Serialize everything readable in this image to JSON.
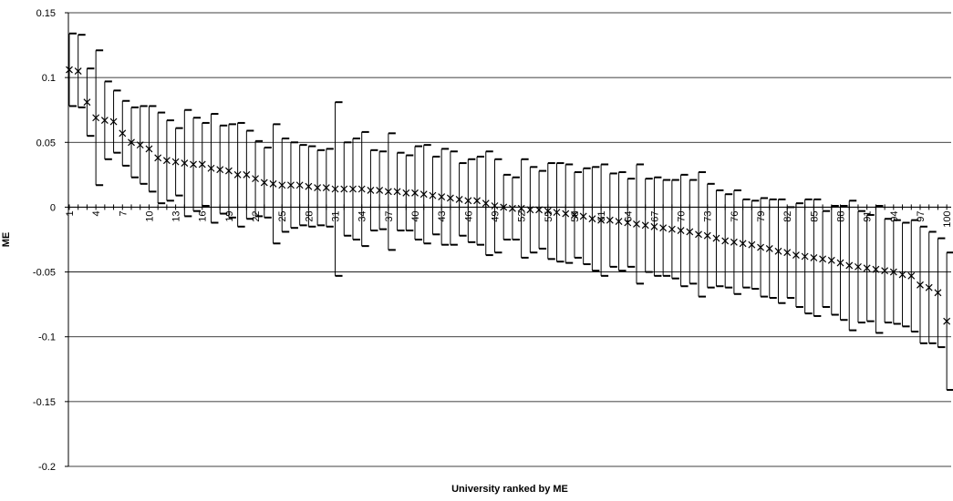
{
  "chart_data": {
    "type": "errorbar",
    "x_label": "University ranked by ME",
    "y_label": "ME",
    "x": [
      1,
      2,
      3,
      4,
      5,
      6,
      7,
      8,
      9,
      10,
      11,
      12,
      13,
      14,
      15,
      16,
      17,
      18,
      19,
      20,
      21,
      22,
      23,
      24,
      25,
      26,
      27,
      28,
      29,
      30,
      31,
      32,
      33,
      34,
      35,
      36,
      37,
      38,
      39,
      40,
      41,
      42,
      43,
      44,
      45,
      46,
      47,
      48,
      49,
      50,
      51,
      52,
      53,
      54,
      55,
      56,
      57,
      58,
      59,
      60,
      61,
      62,
      63,
      64,
      65,
      66,
      67,
      68,
      69,
      70,
      71,
      72,
      73,
      74,
      75,
      76,
      77,
      78,
      79,
      80,
      81,
      82,
      83,
      84,
      85,
      86,
      87,
      88,
      89,
      90,
      91,
      92,
      93,
      94,
      95,
      96,
      97,
      98,
      99,
      100
    ],
    "values": [
      0.106,
      0.105,
      0.081,
      0.069,
      0.067,
      0.066,
      0.057,
      0.05,
      0.048,
      0.045,
      0.038,
      0.036,
      0.035,
      0.034,
      0.033,
      0.033,
      0.03,
      0.029,
      0.028,
      0.025,
      0.025,
      0.022,
      0.019,
      0.018,
      0.017,
      0.017,
      0.017,
      0.016,
      0.015,
      0.015,
      0.014,
      0.014,
      0.014,
      0.014,
      0.013,
      0.013,
      0.012,
      0.012,
      0.011,
      0.011,
      0.01,
      0.009,
      0.008,
      0.007,
      0.006,
      0.005,
      0.005,
      0.003,
      0.001,
      0.0,
      -0.001,
      -0.001,
      -0.002,
      -0.002,
      -0.003,
      -0.004,
      -0.005,
      -0.006,
      -0.007,
      -0.009,
      -0.01,
      -0.01,
      -0.011,
      -0.012,
      -0.013,
      -0.014,
      -0.015,
      -0.016,
      -0.017,
      -0.018,
      -0.019,
      -0.021,
      -0.022,
      -0.024,
      -0.026,
      -0.027,
      -0.028,
      -0.029,
      -0.031,
      -0.032,
      -0.034,
      -0.035,
      -0.037,
      -0.038,
      -0.039,
      -0.04,
      -0.041,
      -0.043,
      -0.045,
      -0.046,
      -0.047,
      -0.048,
      -0.049,
      -0.05,
      -0.052,
      -0.053,
      -0.06,
      -0.062,
      -0.066,
      -0.088
    ],
    "errors": [
      0.028,
      0.028,
      0.026,
      0.052,
      0.03,
      0.024,
      0.025,
      0.027,
      0.03,
      0.033,
      0.035,
      0.031,
      0.026,
      0.041,
      0.036,
      0.032,
      0.042,
      0.034,
      0.036,
      0.04,
      0.034,
      0.029,
      0.027,
      0.046,
      0.036,
      0.033,
      0.031,
      0.031,
      0.029,
      0.03,
      0.067,
      0.036,
      0.039,
      0.044,
      0.031,
      0.03,
      0.045,
      0.03,
      0.029,
      0.036,
      0.038,
      0.03,
      0.037,
      0.036,
      0.028,
      0.032,
      0.034,
      0.04,
      0.036,
      0.025,
      0.024,
      0.038,
      0.033,
      0.03,
      0.037,
      0.038,
      0.038,
      0.033,
      0.037,
      0.04,
      0.043,
      0.036,
      0.038,
      0.034,
      0.046,
      0.036,
      0.038,
      0.037,
      0.038,
      0.043,
      0.04,
      0.048,
      0.04,
      0.037,
      0.036,
      0.04,
      0.034,
      0.034,
      0.038,
      0.038,
      0.04,
      0.035,
      0.04,
      0.044,
      0.045,
      0.037,
      0.042,
      0.044,
      0.05,
      0.043,
      0.041,
      0.049,
      0.04,
      0.04,
      0.04,
      0.043,
      0.045,
      0.043,
      0.042,
      0.053
    ],
    "color": "#000000",
    "xlim": [
      0.9,
      100.5
    ],
    "xticks": [
      1,
      4,
      7,
      10,
      13,
      16,
      19,
      22,
      25,
      28,
      31,
      34,
      37,
      40,
      43,
      46,
      49,
      52,
      55,
      58,
      61,
      64,
      67,
      70,
      73,
      76,
      79,
      82,
      85,
      88,
      91,
      94,
      97,
      100
    ],
    "ylim": [
      -0.2,
      0.15
    ],
    "yticks": [
      0.15,
      0.1,
      0.05,
      0,
      -0.05,
      -0.1,
      -0.15,
      -0.2
    ],
    "grid": true
  }
}
